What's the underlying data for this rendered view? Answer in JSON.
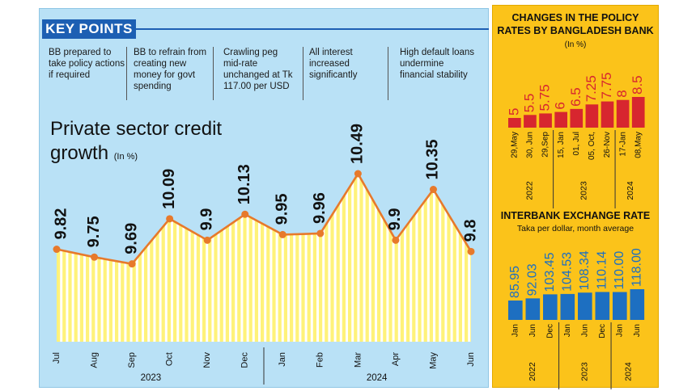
{
  "key_points": {
    "heading": "KEY POINTS",
    "items": [
      "BB prepared to take policy actions if required",
      "BB to refrain from creating new money for govt spending",
      "Crawling peg mid-rate unchanged at Tk 117.00 per USD",
      "All interest increased significantly",
      "High default loans undermine financial stability"
    ]
  },
  "colors": {
    "left_panel": "#b9e1f6",
    "right_panel": "#fbc31a",
    "banner": "#1d5fb3",
    "bar_yellow": "#fff27a",
    "line_orange": "#e7792b",
    "policy_bar": "#d7262f",
    "fx_bar": "#1d6fc1"
  },
  "chart_data": [
    {
      "type": "area",
      "title": "Private sector credit growth",
      "unit": "(In %)",
      "categories": [
        "Jul",
        "Aug",
        "Sep",
        "Oct",
        "Nov",
        "Dec",
        "Jan",
        "Feb",
        "Mar",
        "Apr",
        "May",
        "Jun"
      ],
      "values": [
        9.82,
        9.75,
        9.69,
        10.09,
        9.9,
        10.13,
        9.95,
        9.96,
        10.49,
        9.9,
        10.35,
        9.8
      ],
      "data_labels": [
        "9.82",
        "9.75",
        "9.69",
        "10.09",
        "9.9",
        "10.13",
        "9.95",
        "9.96",
        "10.49",
        "9.9",
        "10.35",
        "9.8"
      ],
      "year_groups": [
        {
          "label": "2023",
          "start": 0,
          "end": 5
        },
        {
          "label": "2024",
          "start": 6,
          "end": 11
        }
      ],
      "ylim": [
        9.0,
        10.6
      ],
      "grid": false
    },
    {
      "type": "bar",
      "title": "CHANGES IN THE POLICY RATES BY BANGLADESH BANK",
      "unit": "(In %)",
      "categories": [
        "29,May",
        "30, Jun",
        "29,Sep",
        "15, Jan",
        "01, Jul",
        "05, Oct,",
        "26-Nov",
        "17-Jan",
        "08,May"
      ],
      "values": [
        5,
        5.5,
        5.75,
        6,
        6.5,
        7.25,
        7.75,
        8,
        8.5
      ],
      "data_labels": [
        "5",
        "5.5",
        "5.75",
        "6",
        "6.5",
        "7.25",
        "7.75",
        "8",
        "8.5"
      ],
      "year_groups": [
        {
          "label": "2022",
          "start": 0,
          "end": 2
        },
        {
          "label": "2023",
          "start": 3,
          "end": 6
        },
        {
          "label": "2024",
          "start": 7,
          "end": 8
        }
      ],
      "ylim": [
        0,
        8.5
      ]
    },
    {
      "type": "bar",
      "title": "INTERBANK EXCHANGE RATE",
      "subtitle": "Taka per dollar, month average",
      "categories": [
        "Jan",
        "Jun",
        "Dec",
        "Jan",
        "Jun",
        "Dec",
        "Jan",
        "Jun"
      ],
      "values": [
        85.95,
        92.03,
        103.45,
        104.53,
        108.34,
        110.14,
        110.0,
        118.0
      ],
      "data_labels": [
        "85.95",
        "92.03",
        "103.45",
        "104.53",
        "108.34",
        "110.14",
        "110.00",
        "118.00"
      ],
      "year_groups": [
        {
          "label": "2022",
          "start": 0,
          "end": 2
        },
        {
          "label": "2023",
          "start": 3,
          "end": 5
        },
        {
          "label": "2024",
          "start": 6,
          "end": 7
        }
      ],
      "ylim": [
        0,
        118
      ]
    }
  ]
}
